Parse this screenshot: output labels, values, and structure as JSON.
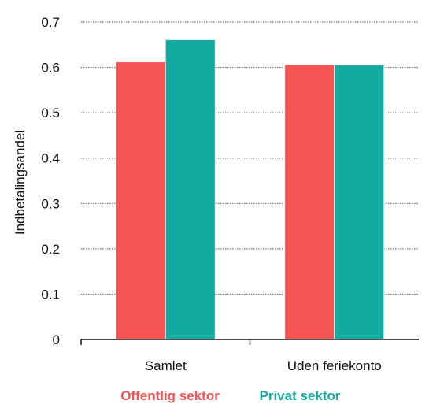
{
  "chart_data": {
    "type": "bar",
    "title": "",
    "xlabel": "",
    "ylabel": "Indbetalingsandel",
    "categories": [
      "Samlet",
      "Uden feriekonto"
    ],
    "series": [
      {
        "name": "Offentlig sektor",
        "color": "#f45452",
        "values": [
          0.612,
          0.606
        ]
      },
      {
        "name": "Privat sektor",
        "color": "#13aba1",
        "values": [
          0.661,
          0.605
        ]
      }
    ],
    "ylim": [
      0,
      0.7
    ],
    "yticks": [
      0,
      0.1,
      0.2,
      0.3,
      0.4,
      0.5,
      0.6,
      0.7
    ],
    "ytick_labels": [
      "0",
      "0.1",
      "0.2",
      "0.3",
      "0.4",
      "0.5",
      "0.6",
      "0.7"
    ],
    "grid": true,
    "legend_position": "bottom"
  }
}
